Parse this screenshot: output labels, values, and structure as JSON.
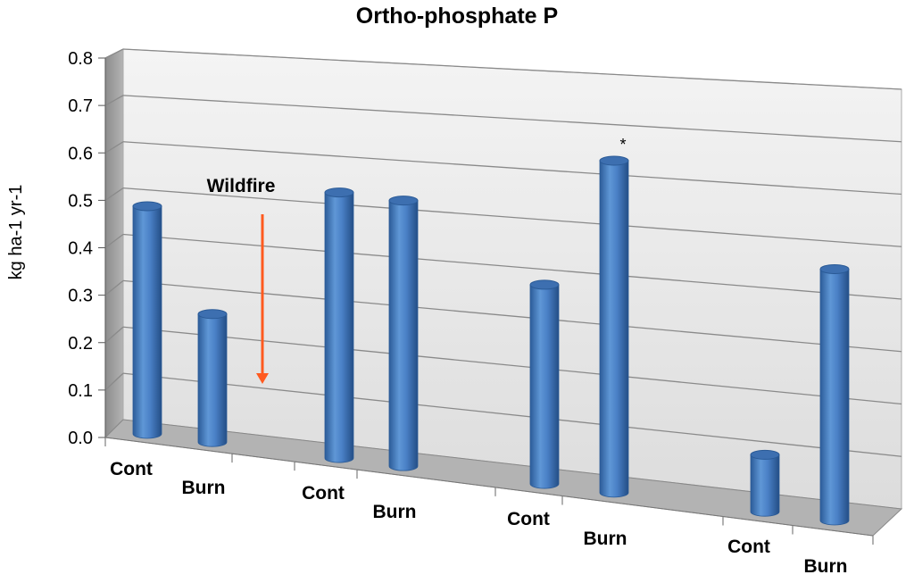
{
  "chart_data": {
    "type": "bar",
    "style": "3d-cylinder",
    "title": "Ortho-phosphate P",
    "xlabel": "",
    "ylabel": "kg ha-1 yr-1",
    "ylim": [
      0,
      0.8
    ],
    "y_ticks": [
      "0.0",
      "0.1",
      "0.2",
      "0.3",
      "0.4",
      "0.5",
      "0.6",
      "0.7",
      "0.8"
    ],
    "categories": [
      "Cont",
      "Burn",
      "Cont",
      "Burn",
      "Cont",
      "Burn",
      "Cont",
      "Burn"
    ],
    "values": [
      0.48,
      0.27,
      0.56,
      0.56,
      0.42,
      0.7,
      0.12,
      0.53
    ],
    "series_color": "#4a80c6",
    "annotations": [
      {
        "text": "Wildfire",
        "type": "label"
      },
      {
        "text": "*",
        "type": "significance",
        "bar_index": 5
      }
    ],
    "arrow_color": "#ff5a1f"
  }
}
